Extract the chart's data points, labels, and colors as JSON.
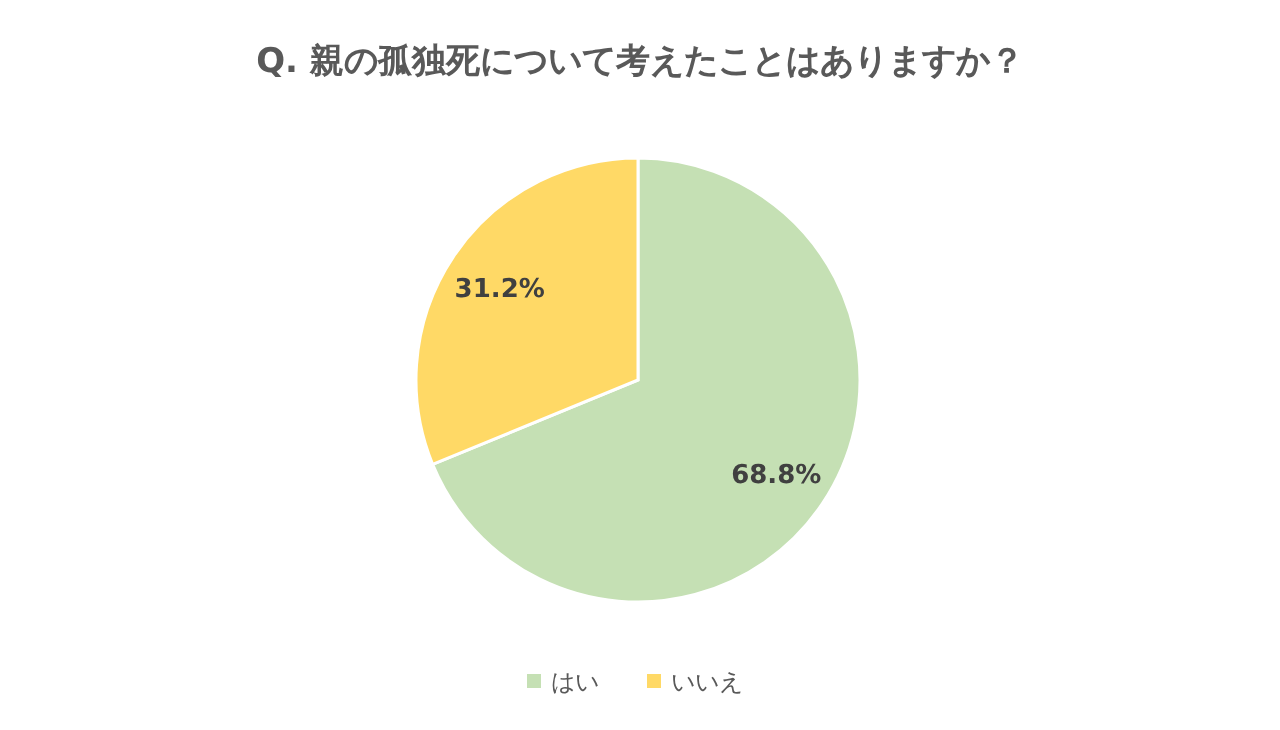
{
  "chart_data": {
    "type": "pie",
    "title": "Q. 親の孤独死について考えたことはありますか？",
    "categories": [
      "はい",
      "いいえ"
    ],
    "values": [
      68.8,
      31.2
    ],
    "colors": [
      "#c5e0b4",
      "#ffd966"
    ],
    "value_labels": [
      "68.8%",
      "31.2%"
    ],
    "legend": "bottom"
  }
}
